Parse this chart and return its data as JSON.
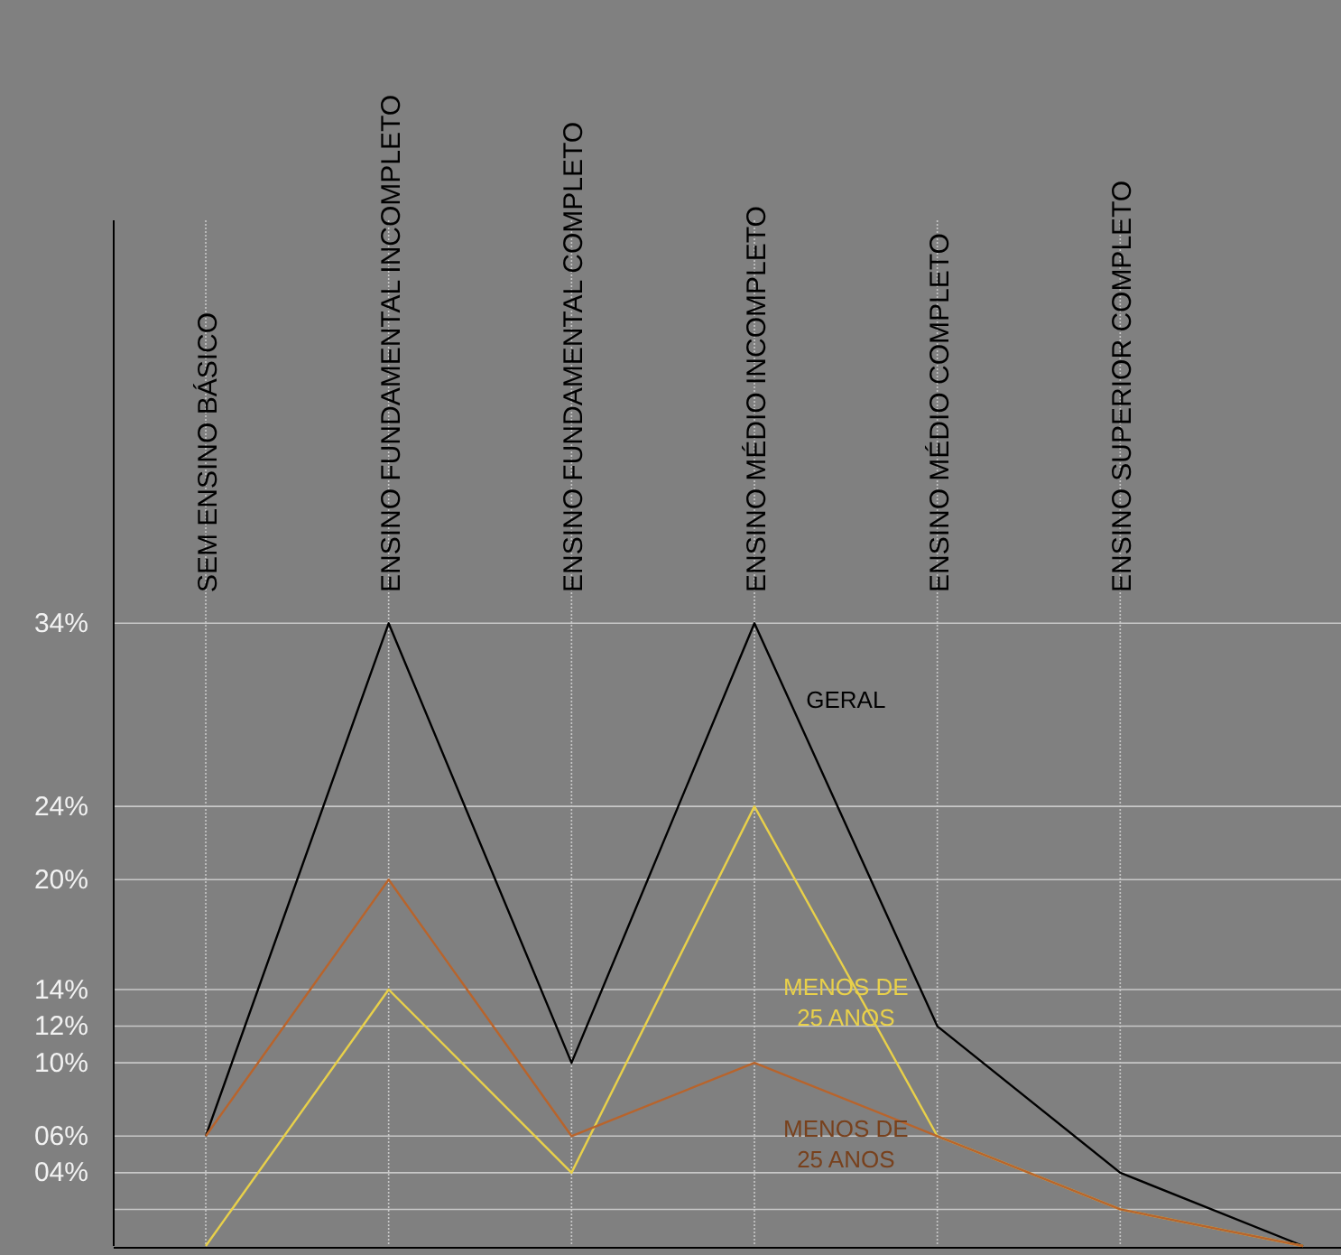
{
  "chart_data": {
    "type": "line",
    "categories": [
      "SEM ENSINO BÁSICO",
      "ENSINO FUNDAMENTAL INCOMPLETO",
      "ENSINO FUNDAMENTAL COMPLETO",
      "ENSINO MÉDIO INCOMPLETO",
      "ENSINO MÉDIO COMPLETO",
      "ENSINO SUPERIOR COMPLETO",
      null
    ],
    "series": [
      {
        "name": "GERAL",
        "color": "#000000",
        "values": [
          6,
          34,
          10,
          34,
          12,
          4,
          0
        ]
      },
      {
        "name": "MENOS DE 25 ANOS",
        "color": "#e8d04a",
        "values": [
          0,
          14,
          4,
          24,
          6,
          2,
          0
        ]
      },
      {
        "name": "MENOS DE 25 ANOS",
        "color": "#b8642c",
        "values": [
          6,
          20,
          6,
          10,
          6,
          2,
          0
        ]
      }
    ],
    "ylim": [
      0,
      56
    ],
    "yticks": [
      {
        "value": 2,
        "label": null
      },
      {
        "value": 4,
        "label": "04%"
      },
      {
        "value": 6,
        "label": "06%"
      },
      {
        "value": 10,
        "label": "10%"
      },
      {
        "value": 12,
        "label": "12%"
      },
      {
        "value": 14,
        "label": "14%"
      },
      {
        "value": 20,
        "label": "20%"
      },
      {
        "value": 24,
        "label": "24%"
      },
      {
        "value": 34,
        "label": "34%"
      }
    ],
    "grid": true,
    "marker": "none",
    "line_style": "solid"
  }
}
